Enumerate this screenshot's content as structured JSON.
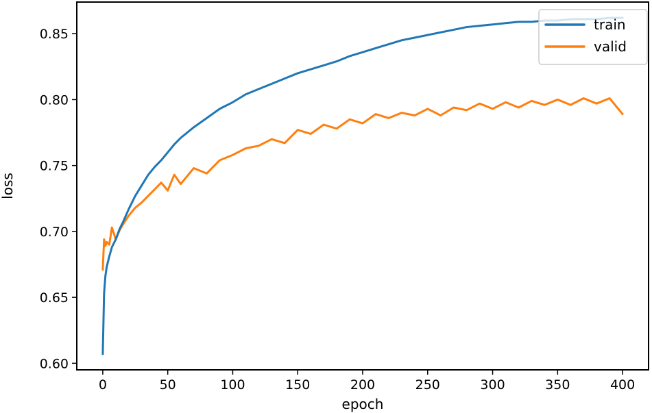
{
  "chart_data": {
    "type": "line",
    "title": "",
    "xlabel": "epoch",
    "ylabel": "loss",
    "xlim": [
      -20,
      420
    ],
    "ylim": [
      0.595,
      0.874
    ],
    "x_ticks": [
      0,
      50,
      100,
      150,
      200,
      250,
      300,
      350,
      400
    ],
    "x_tick_labels": [
      "0",
      "50",
      "100",
      "150",
      "200",
      "250",
      "300",
      "350",
      "400"
    ],
    "y_ticks": [
      0.6,
      0.65,
      0.7,
      0.75,
      0.8,
      0.85
    ],
    "y_tick_labels": [
      "0.60",
      "0.65",
      "0.70",
      "0.75",
      "0.80",
      "0.85"
    ],
    "grid": false,
    "legend_position": "top-right",
    "series": [
      {
        "name": "train",
        "color": "#1f77b4",
        "x": [
          0,
          1,
          2,
          3,
          5,
          7,
          10,
          13,
          16,
          20,
          25,
          30,
          35,
          40,
          45,
          50,
          55,
          60,
          70,
          80,
          90,
          100,
          110,
          120,
          130,
          140,
          150,
          160,
          170,
          180,
          190,
          200,
          210,
          220,
          230,
          240,
          250,
          260,
          270,
          280,
          290,
          300,
          310,
          320,
          330,
          340,
          350,
          360,
          370,
          380,
          390,
          400
        ],
        "y": [
          0.607,
          0.653,
          0.666,
          0.673,
          0.681,
          0.688,
          0.694,
          0.702,
          0.708,
          0.717,
          0.727,
          0.735,
          0.743,
          0.749,
          0.754,
          0.76,
          0.766,
          0.771,
          0.779,
          0.786,
          0.793,
          0.798,
          0.804,
          0.808,
          0.812,
          0.816,
          0.82,
          0.823,
          0.826,
          0.829,
          0.833,
          0.836,
          0.839,
          0.842,
          0.845,
          0.847,
          0.849,
          0.851,
          0.853,
          0.855,
          0.856,
          0.857,
          0.858,
          0.859,
          0.859,
          0.86,
          0.86,
          0.861,
          0.861,
          0.861,
          0.862,
          0.862
        ]
      },
      {
        "name": "valid",
        "color": "#ff7f0e",
        "x": [
          0,
          1,
          2,
          3,
          5,
          7,
          10,
          13,
          16,
          20,
          25,
          30,
          35,
          40,
          45,
          50,
          55,
          60,
          70,
          80,
          90,
          100,
          110,
          120,
          130,
          140,
          150,
          160,
          170,
          180,
          190,
          200,
          210,
          220,
          230,
          240,
          250,
          260,
          270,
          280,
          290,
          300,
          310,
          320,
          330,
          340,
          350,
          360,
          370,
          380,
          390,
          400
        ],
        "y": [
          0.671,
          0.694,
          0.689,
          0.692,
          0.69,
          0.703,
          0.694,
          0.701,
          0.706,
          0.712,
          0.718,
          0.722,
          0.727,
          0.732,
          0.737,
          0.731,
          0.743,
          0.736,
          0.748,
          0.744,
          0.754,
          0.758,
          0.763,
          0.765,
          0.77,
          0.767,
          0.777,
          0.774,
          0.781,
          0.778,
          0.785,
          0.782,
          0.789,
          0.786,
          0.79,
          0.788,
          0.793,
          0.788,
          0.794,
          0.792,
          0.797,
          0.793,
          0.798,
          0.794,
          0.799,
          0.796,
          0.8,
          0.796,
          0.801,
          0.797,
          0.801,
          0.789
        ]
      }
    ]
  }
}
